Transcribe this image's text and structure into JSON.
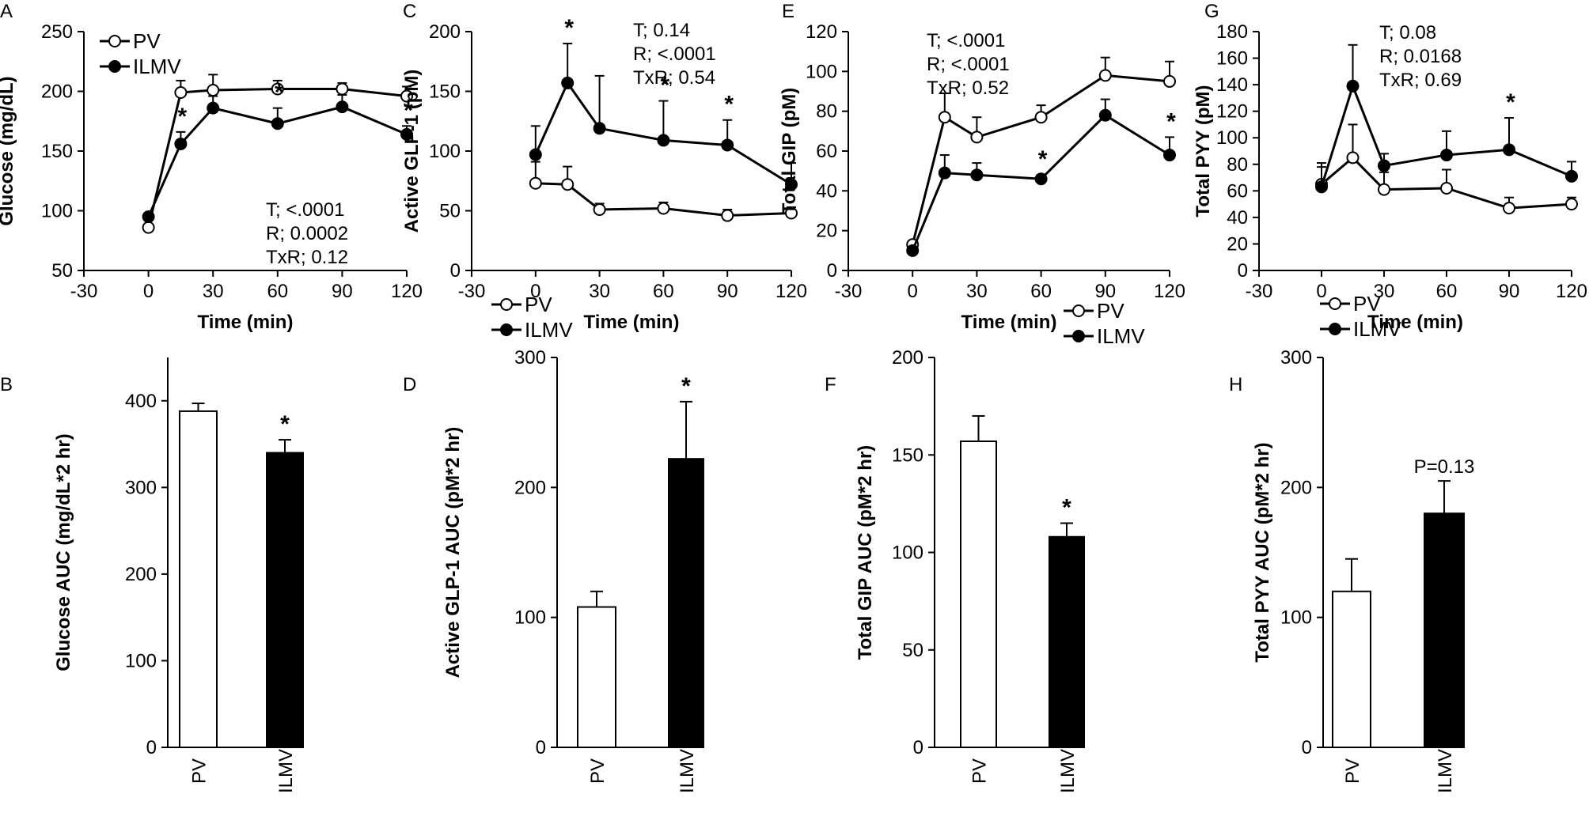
{
  "colors": {
    "ilmv": "#000000",
    "pv": "#ffffff",
    "stroke": "#000000"
  },
  "chart_data": [
    {
      "id": "A",
      "letter": "A",
      "type": "line",
      "ylabel": "Glucose (mg/dL)",
      "xlabel": "Time (min)",
      "xlim": [
        -30,
        120
      ],
      "xticks": [
        -30,
        0,
        30,
        60,
        90,
        120
      ],
      "ylim": [
        50,
        250
      ],
      "yticks": [
        50,
        100,
        150,
        200,
        250
      ],
      "legend": "top-left",
      "stats": [
        "T; <.0001",
        "R; 0.0002",
        "TxR; 0.12"
      ],
      "series": [
        {
          "name": "PV",
          "x": [
            0,
            15,
            30,
            60,
            90,
            120
          ],
          "values": [
            86,
            199,
            201,
            202,
            202,
            196
          ],
          "errors": [
            0,
            10,
            13,
            7,
            5,
            8
          ]
        },
        {
          "name": "ILMV",
          "x": [
            0,
            15,
            30,
            60,
            90,
            120
          ],
          "values": [
            95,
            156,
            186,
            173,
            187,
            164
          ],
          "errors": [
            0,
            10,
            10,
            13,
            10,
            7
          ]
        }
      ],
      "stars": [
        {
          "x": 15,
          "label": "*"
        },
        {
          "x": 60,
          "label": "*"
        },
        {
          "x": 120,
          "label": "*"
        }
      ]
    },
    {
      "id": "C",
      "letter": "C",
      "type": "line",
      "ylabel": "Active GLP-1 (pM)",
      "xlabel": "Time (min)",
      "xlim": [
        -30,
        120
      ],
      "xticks": [
        -30,
        0,
        30,
        60,
        90,
        120
      ],
      "ylim": [
        0,
        200
      ],
      "yticks": [
        0,
        50,
        100,
        150,
        200
      ],
      "legend": "bottom-left",
      "stats": [
        "T; 0.14",
        "R; <.0001",
        "TxR; 0.54"
      ],
      "series": [
        {
          "name": "PV",
          "x": [
            0,
            15,
            30,
            60,
            90,
            120
          ],
          "values": [
            73,
            72,
            51,
            52,
            46,
            48
          ],
          "errors": [
            18,
            15,
            5,
            5,
            5,
            5
          ]
        },
        {
          "name": "ILMV",
          "x": [
            0,
            15,
            30,
            60,
            90,
            120
          ],
          "values": [
            97,
            157,
            119,
            109,
            105,
            72
          ],
          "errors": [
            24,
            33,
            44,
            33,
            21,
            18
          ]
        }
      ],
      "stars": [
        {
          "x": 15,
          "label": "*"
        },
        {
          "x": 60,
          "label": "*"
        },
        {
          "x": 90,
          "label": "*"
        }
      ]
    },
    {
      "id": "E",
      "letter": "E",
      "type": "line",
      "ylabel": "Total GIP (pM)",
      "xlabel": "Time (min)",
      "xlim": [
        -30,
        120
      ],
      "xticks": [
        -30,
        0,
        30,
        60,
        90,
        120
      ],
      "ylim": [
        0,
        120
      ],
      "yticks": [
        0,
        20,
        40,
        60,
        80,
        100,
        120
      ],
      "legend": "bottom-right",
      "stats": [
        "T; <.0001",
        "R;  <.0001",
        "TxR; 0.52"
      ],
      "series": [
        {
          "name": "PV",
          "x": [
            0,
            15,
            30,
            60,
            90,
            120
          ],
          "values": [
            13,
            77,
            67,
            77,
            98,
            95
          ],
          "errors": [
            0,
            12,
            10,
            6,
            9,
            10
          ]
        },
        {
          "name": "ILMV",
          "x": [
            0,
            15,
            30,
            60,
            90,
            120
          ],
          "values": [
            10,
            49,
            48,
            46,
            78,
            58
          ],
          "errors": [
            0,
            9,
            6,
            2,
            8,
            9
          ]
        }
      ],
      "stars": [
        {
          "x": 60,
          "label": "*"
        },
        {
          "x": 120,
          "label": "*"
        }
      ]
    },
    {
      "id": "G",
      "letter": "G",
      "type": "line",
      "ylabel": "Total PYY (pM)",
      "xlabel": "Time (min)",
      "xlim": [
        -30,
        120
      ],
      "xticks": [
        -30,
        0,
        30,
        60,
        90,
        120
      ],
      "ylim": [
        0,
        180
      ],
      "yticks": [
        0,
        20,
        40,
        60,
        80,
        100,
        120,
        140,
        160,
        180
      ],
      "legend": "bottom-left",
      "stats": [
        "T; 0.08",
        "R; 0.0168",
        "TxR; 0.69"
      ],
      "series": [
        {
          "name": "PV",
          "x": [
            0,
            15,
            30,
            60,
            90,
            120
          ],
          "values": [
            65,
            85,
            61,
            62,
            47,
            50
          ],
          "errors": [
            13,
            25,
            13,
            14,
            8,
            5
          ]
        },
        {
          "name": "ILMV",
          "x": [
            0,
            15,
            30,
            60,
            90,
            120
          ],
          "values": [
            63,
            139,
            79,
            87,
            91,
            71
          ],
          "errors": [
            18,
            31,
            9,
            18,
            24,
            11
          ]
        }
      ],
      "stars": [
        {
          "x": 90,
          "label": "*"
        }
      ]
    },
    {
      "id": "B",
      "letter": "B",
      "type": "bar",
      "ylabel": "Glucose AUC (mg/dL*2 hr)",
      "categories": [
        "PV",
        "ILMV"
      ],
      "values": [
        388,
        340
      ],
      "errors": [
        9,
        15
      ],
      "ylim": [
        0,
        450
      ],
      "yticks": [
        0,
        100,
        200,
        300,
        400
      ],
      "annotation": "*"
    },
    {
      "id": "D",
      "letter": "D",
      "type": "bar",
      "ylabel": "Active GLP-1 AUC (pM*2 hr)",
      "categories": [
        "PV",
        "ILMV"
      ],
      "values": [
        108,
        222
      ],
      "errors": [
        12,
        44
      ],
      "ylim": [
        0,
        300
      ],
      "yticks": [
        0,
        100,
        200,
        300
      ],
      "annotation": "*"
    },
    {
      "id": "F",
      "letter": "F",
      "type": "bar",
      "ylabel": "Total GIP AUC (pM*2 hr)",
      "categories": [
        "PV",
        "ILMV"
      ],
      "values": [
        157,
        108
      ],
      "errors": [
        13,
        7
      ],
      "ylim": [
        0,
        200
      ],
      "yticks": [
        0,
        50,
        100,
        150,
        200
      ],
      "annotation": "*"
    },
    {
      "id": "H",
      "letter": "H",
      "type": "bar",
      "ylabel": "Total PYY AUC (pM*2 hr)",
      "categories": [
        "PV",
        "ILMV"
      ],
      "values": [
        120,
        180
      ],
      "errors": [
        25,
        25
      ],
      "ylim": [
        0,
        300
      ],
      "yticks": [
        0,
        100,
        200,
        300
      ],
      "annotation": "P=0.13"
    }
  ]
}
